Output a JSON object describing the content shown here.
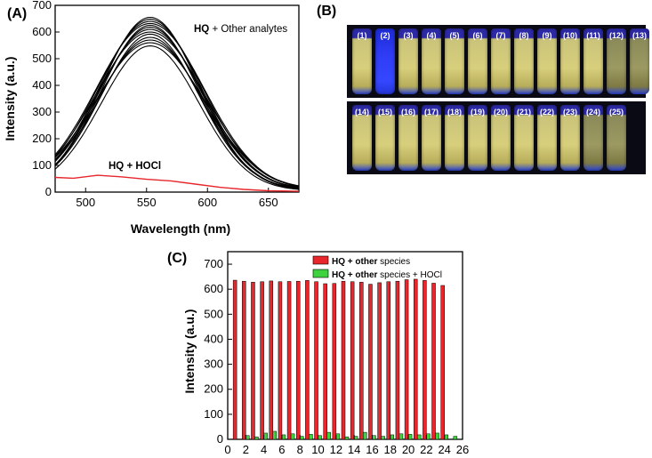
{
  "panelA": {
    "label": "(A)",
    "ylabel": "Intensity (a.u.)",
    "xlabel": "Wavelength (nm)",
    "annot_top_bold": "HQ",
    "annot_top_rest": " + Other analytes",
    "annot_bottom": "HQ + HOCl",
    "line_color_black": "#000000",
    "line_color_red": "#e8262b"
  },
  "panelB": {
    "label": "(B)",
    "row1": [
      "(1)",
      "(2)",
      "(3)",
      "(4)",
      "(5)",
      "(6)",
      "(7)",
      "(8)",
      "(9)",
      "(10)",
      "(11)",
      "(12)",
      "(13)"
    ],
    "row2": [
      "(14)",
      "(15)",
      "(16)",
      "(17)",
      "(18)",
      "(19)",
      "(20)",
      "(21)",
      "(22)",
      "(23)",
      "(24)",
      "(25)"
    ]
  },
  "panelC": {
    "label": "(C)",
    "ylabel": "Intensity (a.u.)",
    "legend1_bold": "HQ + other",
    "legend1_rest": " species",
    "legend2_bold": "HQ + other",
    "legend2_rest": " species + HOCl",
    "red_color": "#e8262b",
    "green_color": "#3fd23f"
  },
  "chart_data": [
    {
      "type": "line",
      "xlim": [
        475,
        675
      ],
      "ylim": [
        0,
        700
      ],
      "xticks": [
        500,
        550,
        600,
        650
      ],
      "yticks": [
        0,
        100,
        200,
        300,
        400,
        500,
        600,
        700
      ],
      "peak_x": 553,
      "series_black_peaks": [
        655,
        648,
        640,
        632,
        625,
        618,
        610,
        600,
        592,
        580,
        570,
        560,
        548
      ],
      "series_red": {
        "x": [
          475,
          490,
          510,
          530,
          550,
          570,
          590,
          610,
          630,
          650,
          675
        ],
        "y": [
          55,
          52,
          63,
          57,
          48,
          42,
          30,
          18,
          10,
          5,
          3
        ]
      }
    },
    {
      "type": "bar",
      "xlim": [
        0,
        26
      ],
      "ylim": [
        0,
        750
      ],
      "xticks": [
        0,
        2,
        4,
        6,
        8,
        10,
        12,
        14,
        16,
        18,
        20,
        22,
        24,
        26
      ],
      "yticks": [
        0,
        100,
        200,
        300,
        400,
        500,
        600,
        700
      ],
      "x": [
        1,
        2,
        3,
        4,
        5,
        6,
        7,
        8,
        9,
        10,
        11,
        12,
        13,
        14,
        15,
        16,
        17,
        18,
        19,
        20,
        21,
        22,
        23,
        24,
        25
      ],
      "series": [
        {
          "values": [
            636,
            632,
            628,
            630,
            633,
            630,
            631,
            632,
            635,
            630,
            622,
            623,
            632,
            630,
            628,
            620,
            626,
            630,
            632,
            638,
            640,
            635,
            624,
            615,
            0
          ]
        },
        {
          "values": [
            0,
            15,
            10,
            25,
            32,
            18,
            22,
            12,
            20,
            15,
            28,
            22,
            10,
            12,
            28,
            15,
            12,
            18,
            22,
            20,
            18,
            22,
            25,
            18,
            12
          ]
        }
      ]
    }
  ]
}
